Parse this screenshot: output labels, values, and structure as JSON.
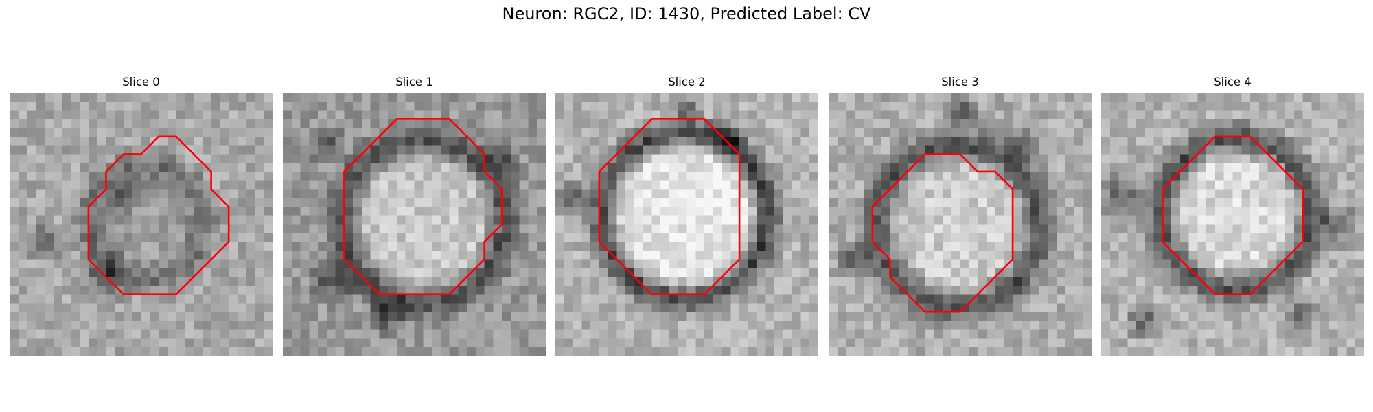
{
  "figure": {
    "title": "Neuron: RGC2, ID: 1430, Predicted Label: CV"
  },
  "panels": [
    {
      "title": "Slice 0",
      "contour": [
        [
          8.5,
          2.5
        ],
        [
          9.5,
          2.5
        ],
        [
          10.5,
          3.5
        ],
        [
          11.5,
          4.5
        ],
        [
          11.5,
          5.5
        ],
        [
          12.5,
          6.5
        ],
        [
          12.5,
          7.5
        ],
        [
          12.5,
          8.5
        ],
        [
          11.5,
          9.5
        ],
        [
          10.5,
          10.5
        ],
        [
          9.5,
          11.5
        ],
        [
          8.5,
          11.5
        ],
        [
          7.5,
          11.5
        ],
        [
          6.5,
          11.5
        ],
        [
          5.5,
          10.5
        ],
        [
          4.5,
          9.5
        ],
        [
          4.5,
          8.5
        ],
        [
          4.5,
          7.5
        ],
        [
          4.5,
          6.5
        ],
        [
          5.5,
          5.5
        ],
        [
          5.5,
          4.5
        ],
        [
          6.5,
          3.5
        ],
        [
          7.5,
          3.5
        ]
      ]
    },
    {
      "title": "Slice 1",
      "contour": [
        [
          6.5,
          1.5
        ],
        [
          7.5,
          1.5
        ],
        [
          8.5,
          1.5
        ],
        [
          9.5,
          1.5
        ],
        [
          10.5,
          2.5
        ],
        [
          11.5,
          3.5
        ],
        [
          11.5,
          4.5
        ],
        [
          12.5,
          5.5
        ],
        [
          12.5,
          6.5
        ],
        [
          12.5,
          7.5
        ],
        [
          11.5,
          8.5
        ],
        [
          11.5,
          9.5
        ],
        [
          10.5,
          10.5
        ],
        [
          9.5,
          11.5
        ],
        [
          8.5,
          11.5
        ],
        [
          7.5,
          11.5
        ],
        [
          6.5,
          11.5
        ],
        [
          5.5,
          11.5
        ],
        [
          4.5,
          10.5
        ],
        [
          3.5,
          9.5
        ],
        [
          3.5,
          8.5
        ],
        [
          3.5,
          7.5
        ],
        [
          3.5,
          6.5
        ],
        [
          3.5,
          5.5
        ],
        [
          3.5,
          4.5
        ],
        [
          4.5,
          3.5
        ],
        [
          5.5,
          2.5
        ]
      ]
    },
    {
      "title": "Slice 2",
      "contour": [
        [
          6.5,
          1.5
        ],
        [
          7.5,
          1.5
        ],
        [
          8.5,
          1.5
        ],
        [
          9.5,
          2.5
        ],
        [
          10.5,
          3.5
        ],
        [
          10.5,
          4.5
        ],
        [
          10.5,
          5.5
        ],
        [
          10.5,
          6.5
        ],
        [
          10.5,
          7.5
        ],
        [
          10.5,
          8.5
        ],
        [
          10.5,
          9.5
        ],
        [
          9.5,
          10.5
        ],
        [
          8.5,
          11.5
        ],
        [
          7.5,
          11.5
        ],
        [
          6.5,
          11.5
        ],
        [
          5.5,
          11.5
        ],
        [
          4.5,
          10.5
        ],
        [
          3.5,
          9.5
        ],
        [
          2.5,
          8.5
        ],
        [
          2.5,
          7.5
        ],
        [
          2.5,
          6.5
        ],
        [
          2.5,
          5.5
        ],
        [
          2.5,
          4.5
        ],
        [
          3.5,
          3.5
        ],
        [
          4.5,
          2.5
        ],
        [
          5.5,
          1.5
        ]
      ]
    },
    {
      "title": "Slice 3",
      "contour": [
        [
          6.5,
          3.5
        ],
        [
          7.5,
          3.5
        ],
        [
          8.5,
          4.5
        ],
        [
          9.5,
          4.5
        ],
        [
          10.5,
          5.5
        ],
        [
          10.5,
          6.5
        ],
        [
          10.5,
          7.5
        ],
        [
          10.5,
          8.5
        ],
        [
          10.5,
          9.5
        ],
        [
          9.5,
          10.5
        ],
        [
          8.5,
          11.5
        ],
        [
          7.5,
          12.5
        ],
        [
          6.5,
          12.5
        ],
        [
          5.5,
          12.5
        ],
        [
          4.5,
          11.5
        ],
        [
          3.5,
          10.5
        ],
        [
          3.5,
          9.5
        ],
        [
          2.5,
          8.5
        ],
        [
          2.5,
          7.5
        ],
        [
          2.5,
          6.5
        ],
        [
          3.5,
          5.5
        ],
        [
          4.5,
          4.5
        ],
        [
          5.5,
          3.5
        ]
      ]
    },
    {
      "title": "Slice 4",
      "contour": [
        [
          6.5,
          2.5
        ],
        [
          7.5,
          2.5
        ],
        [
          8.5,
          2.5
        ],
        [
          9.5,
          3.5
        ],
        [
          10.5,
          4.5
        ],
        [
          11.5,
          5.5
        ],
        [
          11.5,
          6.5
        ],
        [
          11.5,
          7.5
        ],
        [
          11.5,
          8.5
        ],
        [
          10.5,
          9.5
        ],
        [
          9.5,
          10.5
        ],
        [
          8.5,
          11.5
        ],
        [
          7.5,
          11.5
        ],
        [
          6.5,
          11.5
        ],
        [
          5.5,
          10.5
        ],
        [
          4.5,
          9.5
        ],
        [
          3.5,
          8.5
        ],
        [
          3.5,
          7.5
        ],
        [
          3.5,
          6.5
        ],
        [
          3.5,
          5.5
        ],
        [
          4.5,
          4.5
        ],
        [
          5.5,
          3.5
        ]
      ]
    }
  ],
  "colors": {
    "contour": "#ff0000",
    "background": "#ffffff"
  }
}
